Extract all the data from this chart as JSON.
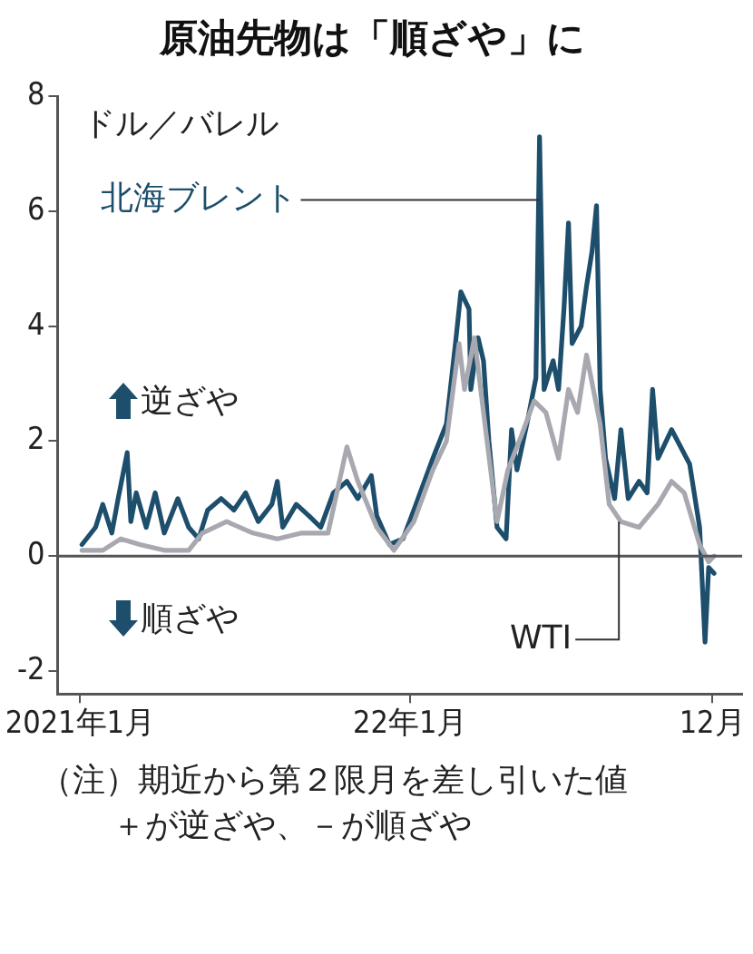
{
  "chart_data": {
    "type": "line",
    "title": "原油先物は「順ざや」に",
    "ylabel": "ドル／バレル",
    "xlim": [
      "2020-12-07",
      "2023-01-03"
    ],
    "ylim": [
      -2.4,
      8
    ],
    "xticks": [
      {
        "value": "2021-01",
        "label": "2021年1月"
      },
      {
        "value": "2022-01",
        "label": "22年1月"
      },
      {
        "value": "2022-12",
        "label": "12月"
      }
    ],
    "yticks": [
      -2,
      0,
      2,
      4,
      6,
      8
    ],
    "grid": false,
    "legend": false,
    "marker": "none",
    "line_style": "solid",
    "ref_lines": [
      {
        "axis": "y",
        "value": 0,
        "color": "#555555"
      }
    ],
    "annotations": [
      "逆ざや",
      "順ざや",
      "（注）期近から第２限月を差し引いた値",
      "＋が逆ざや、－が順ざや"
    ],
    "series": [
      {
        "name": "WTI",
        "color": "#a8a8b0",
        "x": [
          "2021-01-03",
          "2021-01-26",
          "2021-02-15",
          "2021-03-08",
          "2021-04-04",
          "2021-05-01",
          "2021-05-16",
          "2021-06-12",
          "2021-07-11",
          "2021-08-07",
          "2021-09-03",
          "2021-10-02",
          "2021-10-23",
          "2021-11-04",
          "2021-11-25",
          "2021-12-14",
          "2022-01-05",
          "2022-01-26",
          "2022-02-10",
          "2022-02-24",
          "2022-03-02",
          "2022-03-13",
          "2022-03-23",
          "2022-04-07",
          "2022-04-19",
          "2022-05-04",
          "2022-05-18",
          "2022-05-31",
          "2022-06-14",
          "2022-06-25",
          "2022-07-05",
          "2022-07-15",
          "2022-07-30",
          "2022-08-09",
          "2022-08-22",
          "2022-09-11",
          "2022-10-02",
          "2022-10-17",
          "2022-10-31",
          "2022-11-17",
          "2022-11-27",
          "2022-12-03"
        ],
        "values": [
          0.1,
          0.1,
          0.3,
          0.2,
          0.1,
          0.1,
          0.4,
          0.6,
          0.4,
          0.3,
          0.4,
          0.4,
          1.9,
          1.3,
          0.5,
          0.1,
          0.6,
          1.5,
          2.0,
          3.7,
          2.9,
          3.8,
          2.5,
          0.6,
          1.5,
          2.1,
          2.7,
          2.5,
          1.7,
          2.9,
          2.5,
          3.5,
          2.3,
          0.9,
          0.6,
          0.5,
          0.9,
          1.3,
          1.1,
          0.2,
          -0.1,
          0.0
        ]
      },
      {
        "name": "北海ブレント",
        "color": "#1d4e6b",
        "x": [
          "2021-01-03",
          "2021-01-18",
          "2021-01-26",
          "2021-02-05",
          "2021-02-12",
          "2021-02-22",
          "2021-02-26",
          "2021-03-04",
          "2021-03-15",
          "2021-03-25",
          "2021-04-04",
          "2021-04-19",
          "2021-05-01",
          "2021-05-12",
          "2021-05-22",
          "2021-06-06",
          "2021-06-20",
          "2021-07-03",
          "2021-07-17",
          "2021-08-01",
          "2021-08-07",
          "2021-08-13",
          "2021-08-28",
          "2021-09-11",
          "2021-09-24",
          "2021-10-08",
          "2021-10-23",
          "2021-11-04",
          "2021-11-19",
          "2021-11-25",
          "2021-12-09",
          "2021-12-24",
          "2022-01-05",
          "2022-01-26",
          "2022-02-10",
          "2022-02-20",
          "2022-02-26",
          "2022-03-07",
          "2022-03-09",
          "2022-03-17",
          "2022-03-23",
          "2022-03-29",
          "2022-04-07",
          "2022-04-17",
          "2022-04-23",
          "2022-04-29",
          "2022-05-10",
          "2022-05-20",
          "2022-05-24",
          "2022-05-29",
          "2022-06-08",
          "2022-06-14",
          "2022-06-20",
          "2022-06-25",
          "2022-06-29",
          "2022-07-09",
          "2022-07-15",
          "2022-07-21",
          "2022-07-26",
          "2022-07-30",
          "2022-08-05",
          "2022-08-15",
          "2022-08-22",
          "2022-08-30",
          "2022-09-11",
          "2022-09-20",
          "2022-09-26",
          "2022-10-02",
          "2022-10-17",
          "2022-10-27",
          "2022-11-06",
          "2022-11-17",
          "2022-11-23",
          "2022-11-27",
          "2022-12-03"
        ],
        "values": [
          0.2,
          0.5,
          0.9,
          0.4,
          1.0,
          1.8,
          0.6,
          1.1,
          0.5,
          1.1,
          0.4,
          1.0,
          0.5,
          0.3,
          0.8,
          1.0,
          0.8,
          1.1,
          0.6,
          0.9,
          1.3,
          0.5,
          0.9,
          0.7,
          0.5,
          1.1,
          1.3,
          1.0,
          1.4,
          0.7,
          0.2,
          0.3,
          0.8,
          1.7,
          2.3,
          3.7,
          4.6,
          4.3,
          2.9,
          3.8,
          3.4,
          2.0,
          0.5,
          0.3,
          2.2,
          1.5,
          2.3,
          3.1,
          7.3,
          2.9,
          3.4,
          2.9,
          4.3,
          5.8,
          3.7,
          4.0,
          4.7,
          5.3,
          6.1,
          2.9,
          1.7,
          1.0,
          2.2,
          1.0,
          1.3,
          1.1,
          2.9,
          1.7,
          2.2,
          1.9,
          1.6,
          0.5,
          -1.5,
          -0.2,
          -0.3
        ]
      }
    ]
  }
}
